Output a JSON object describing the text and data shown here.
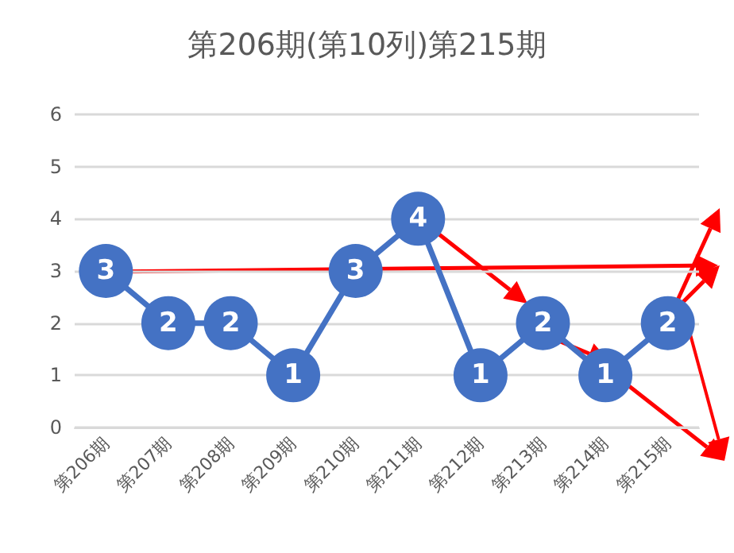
{
  "chart_data": {
    "type": "line",
    "title": "第206期(第10列)第215期",
    "categories": [
      "第206期",
      "第207期",
      "第208期",
      "第209期",
      "第210期",
      "第211期",
      "第212期",
      "第213期",
      "第214期",
      "第215期"
    ],
    "series": [
      {
        "color": "#4472c4",
        "values": [
          3,
          2,
          2,
          1,
          3,
          4,
          1,
          2,
          1,
          2
        ]
      }
    ],
    "ylim": [
      0,
      6
    ],
    "yticks": [
      0,
      1,
      2,
      3,
      4,
      5,
      6
    ],
    "grid": "y",
    "marker": "circle",
    "data_labels": true
  }
}
